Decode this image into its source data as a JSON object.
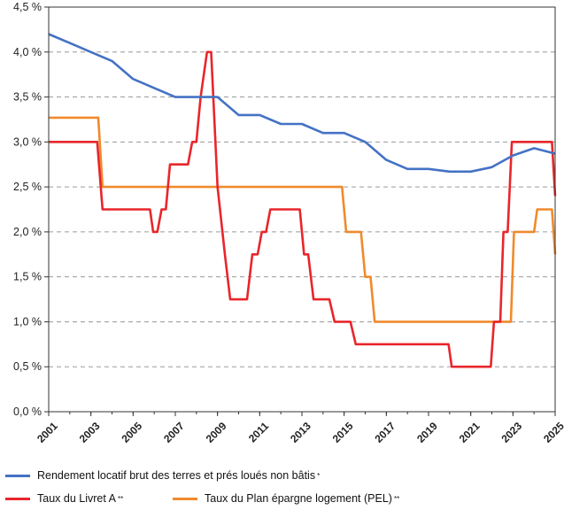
{
  "chart_data": {
    "type": "line",
    "title": "",
    "xlabel": "",
    "ylabel": "",
    "xlim": [
      2001,
      2025
    ],
    "ylim": [
      0,
      4.5
    ],
    "grid": true,
    "legend_position": "bottom",
    "x_ticks": [
      "2001",
      "2003",
      "2005",
      "2007",
      "2009",
      "2011",
      "2013",
      "2015",
      "2017",
      "2019",
      "2021",
      "2023",
      "2025"
    ],
    "y_ticks": [
      "0,0 %",
      "0,5 %",
      "1,0 %",
      "1,5 %",
      "2,0 %",
      "2,5 %",
      "3,0 %",
      "3,5 %",
      "4,0 %",
      "4,5 %"
    ],
    "series": [
      {
        "name": "Rendement locatif brut des terres et prés loués non bâtis",
        "note": "*",
        "color": "#4472c4",
        "points": [
          [
            2001,
            4.2
          ],
          [
            2002,
            4.1
          ],
          [
            2003,
            4.0
          ],
          [
            2004,
            3.9
          ],
          [
            2005,
            3.7
          ],
          [
            2006,
            3.6
          ],
          [
            2007,
            3.5
          ],
          [
            2008,
            3.5
          ],
          [
            2009,
            3.5
          ],
          [
            2010,
            3.3
          ],
          [
            2011,
            3.3
          ],
          [
            2012,
            3.2
          ],
          [
            2013,
            3.2
          ],
          [
            2014,
            3.1
          ],
          [
            2015,
            3.1
          ],
          [
            2016,
            3.0
          ],
          [
            2017,
            2.8
          ],
          [
            2018,
            2.7
          ],
          [
            2019,
            2.7
          ],
          [
            2020,
            2.67
          ],
          [
            2021,
            2.67
          ],
          [
            2022,
            2.72
          ],
          [
            2023,
            2.85
          ],
          [
            2024,
            2.93
          ],
          [
            2025,
            2.87
          ]
        ]
      },
      {
        "name": "Taux du Livret A",
        "note": "**",
        "color": "#e8262b",
        "points": [
          [
            2001,
            3.0
          ],
          [
            2003.3,
            3.0
          ],
          [
            2003.55,
            2.25
          ],
          [
            2005.8,
            2.25
          ],
          [
            2005.95,
            2.0
          ],
          [
            2006.15,
            2.0
          ],
          [
            2006.35,
            2.25
          ],
          [
            2006.55,
            2.25
          ],
          [
            2006.75,
            2.75
          ],
          [
            2007.6,
            2.75
          ],
          [
            2007.8,
            3.0
          ],
          [
            2008.0,
            3.0
          ],
          [
            2008.2,
            3.5
          ],
          [
            2008.5,
            4.0
          ],
          [
            2008.7,
            4.0
          ],
          [
            2009.0,
            2.5
          ],
          [
            2009.35,
            1.75
          ],
          [
            2009.6,
            1.25
          ],
          [
            2010.4,
            1.25
          ],
          [
            2010.65,
            1.75
          ],
          [
            2010.9,
            1.75
          ],
          [
            2011.1,
            2.0
          ],
          [
            2011.3,
            2.0
          ],
          [
            2011.5,
            2.25
          ],
          [
            2012.9,
            2.25
          ],
          [
            2013.1,
            1.75
          ],
          [
            2013.3,
            1.75
          ],
          [
            2013.55,
            1.25
          ],
          [
            2014.3,
            1.25
          ],
          [
            2014.55,
            1.0
          ],
          [
            2015.3,
            1.0
          ],
          [
            2015.55,
            0.75
          ],
          [
            2019.95,
            0.75
          ],
          [
            2020.1,
            0.5
          ],
          [
            2021.95,
            0.5
          ],
          [
            2022.1,
            1.0
          ],
          [
            2022.4,
            1.0
          ],
          [
            2022.55,
            2.0
          ],
          [
            2022.75,
            2.0
          ],
          [
            2022.95,
            3.0
          ],
          [
            2024.85,
            3.0
          ],
          [
            2025.0,
            2.4
          ]
        ]
      },
      {
        "name": "Taux du Plan épargne logement (PEL)",
        "note": "**",
        "color": "#f08a2c",
        "points": [
          [
            2001,
            3.27
          ],
          [
            2003.35,
            3.27
          ],
          [
            2003.55,
            2.5
          ],
          [
            2014.9,
            2.5
          ],
          [
            2015.1,
            2.0
          ],
          [
            2015.8,
            2.0
          ],
          [
            2016.0,
            1.5
          ],
          [
            2016.25,
            1.5
          ],
          [
            2016.45,
            1.0
          ],
          [
            2022.9,
            1.0
          ],
          [
            2023.05,
            2.0
          ],
          [
            2024.0,
            2.0
          ],
          [
            2024.15,
            2.25
          ],
          [
            2024.85,
            2.25
          ],
          [
            2025.0,
            1.75
          ]
        ]
      }
    ]
  }
}
